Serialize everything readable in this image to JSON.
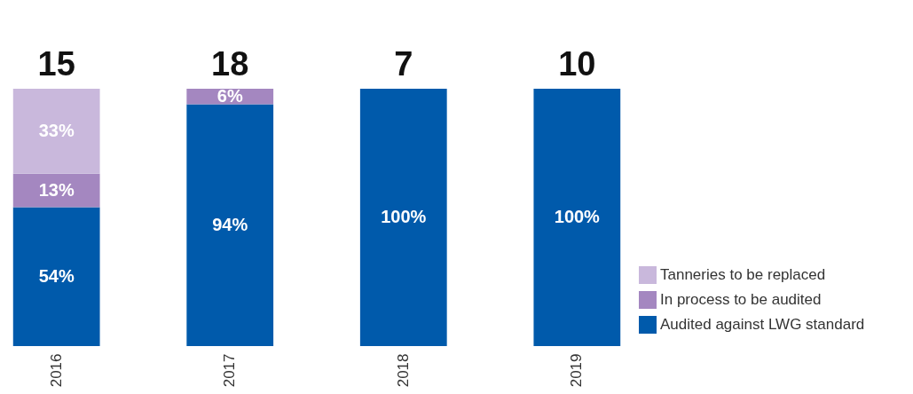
{
  "chart_data": {
    "type": "bar",
    "stacked": true,
    "categories": [
      "2016",
      "2017",
      "2018",
      "2019"
    ],
    "series": [
      {
        "name": "Audited against LWG standard",
        "color": "#005aab",
        "values": [
          54,
          94,
          100,
          100
        ],
        "value_labels": [
          "54%",
          "94%",
          "100%",
          "100%"
        ]
      },
      {
        "name": "In process to be audited",
        "color": "#a487c0",
        "values": [
          13,
          6,
          null,
          null
        ],
        "value_labels": [
          "13%",
          "6%",
          null,
          null
        ]
      },
      {
        "name": "Tanneries to be replaced",
        "color": "#c9b8dc",
        "values": [
          33,
          null,
          null,
          null
        ],
        "value_labels": [
          "33%",
          null,
          null,
          null
        ]
      }
    ],
    "annotations": [
      {
        "text": "15",
        "x": "2016",
        "y": 100
      },
      {
        "text": "18",
        "x": "2017",
        "y": 100
      },
      {
        "text": "7",
        "x": "2018",
        "y": 100
      },
      {
        "text": "10",
        "x": "2019",
        "y": 100
      }
    ],
    "legend": "right"
  }
}
